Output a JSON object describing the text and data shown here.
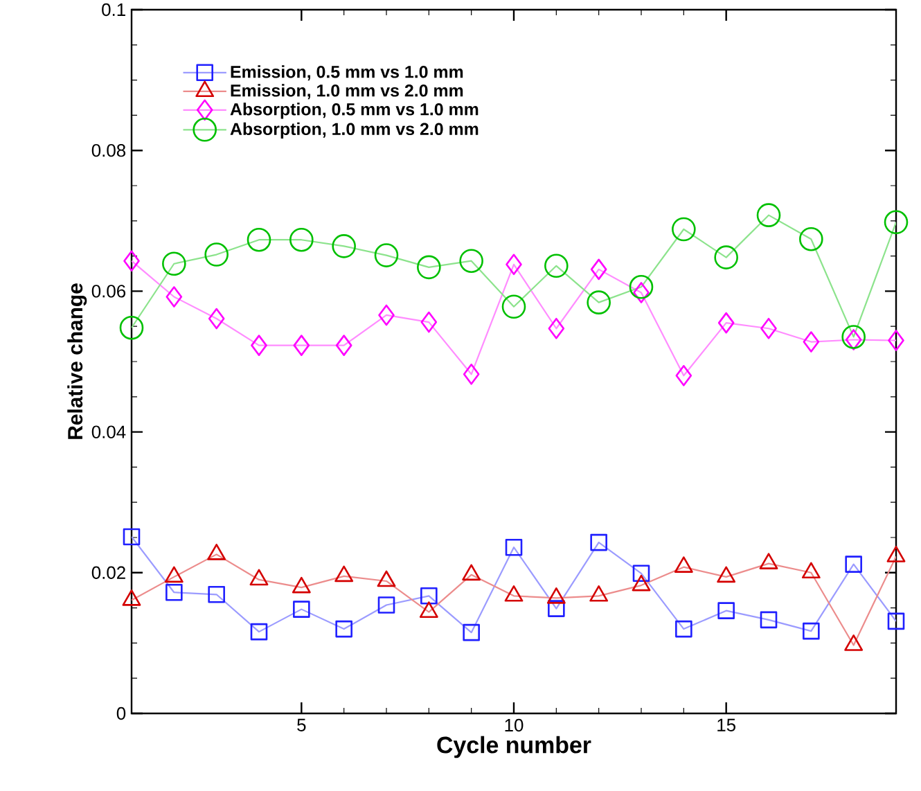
{
  "chart_data": {
    "type": "line",
    "xlabel": "Cycle number",
    "ylabel": "Relative change",
    "x": [
      1,
      2,
      3,
      4,
      5,
      6,
      7,
      8,
      9,
      10,
      11,
      12,
      13,
      14,
      15,
      16,
      17,
      18,
      19
    ],
    "xlim": [
      1,
      19
    ],
    "xticks": [
      5,
      10,
      15
    ],
    "ylim": [
      0,
      0.1
    ],
    "yticks": [
      0,
      0.02,
      0.04,
      0.06,
      0.08,
      0.1
    ],
    "grid": false,
    "legend": "top left",
    "line_style": "solid",
    "series": [
      {
        "name": "Emission, 0.5 mm vs 1.0 mm",
        "color": "#2020ff",
        "marker": "square",
        "values": [
          0.0251,
          0.0172,
          0.0169,
          0.0116,
          0.0148,
          0.012,
          0.0154,
          0.0167,
          0.0115,
          0.0236,
          0.0149,
          0.0243,
          0.0199,
          0.012,
          0.0146,
          0.0133,
          0.0117,
          0.0212,
          0.0131
        ]
      },
      {
        "name": "Emission, 1.0 mm vs 2.0 mm",
        "color": "#d40000",
        "marker": "triangle",
        "values": [
          0.0161,
          0.0194,
          0.0226,
          0.019,
          0.0179,
          0.0195,
          0.0188,
          0.0144,
          0.0197,
          0.0167,
          0.0164,
          0.0167,
          0.0182,
          0.0208,
          0.0194,
          0.0213,
          0.02,
          0.0097,
          0.0223
        ]
      },
      {
        "name": "Absorption, 0.5 mm vs 1.0 mm",
        "color": "#ff00ff",
        "marker": "diamond",
        "values": [
          0.0643,
          0.0592,
          0.0561,
          0.0523,
          0.0523,
          0.0523,
          0.0566,
          0.0556,
          0.0482,
          0.0638,
          0.0547,
          0.0631,
          0.0598,
          0.048,
          0.0555,
          0.0547,
          0.0528,
          0.0531,
          0.053
        ]
      },
      {
        "name": "Absorption, 1.0 mm vs 2.0 mm",
        "color": "#00c000",
        "marker": "circle",
        "values": [
          0.0548,
          0.0639,
          0.0652,
          0.0673,
          0.0673,
          0.0664,
          0.0651,
          0.0634,
          0.0643,
          0.0578,
          0.0636,
          0.0584,
          0.0606,
          0.0688,
          0.0648,
          0.0708,
          0.0674,
          0.0535,
          0.0698
        ]
      }
    ]
  }
}
